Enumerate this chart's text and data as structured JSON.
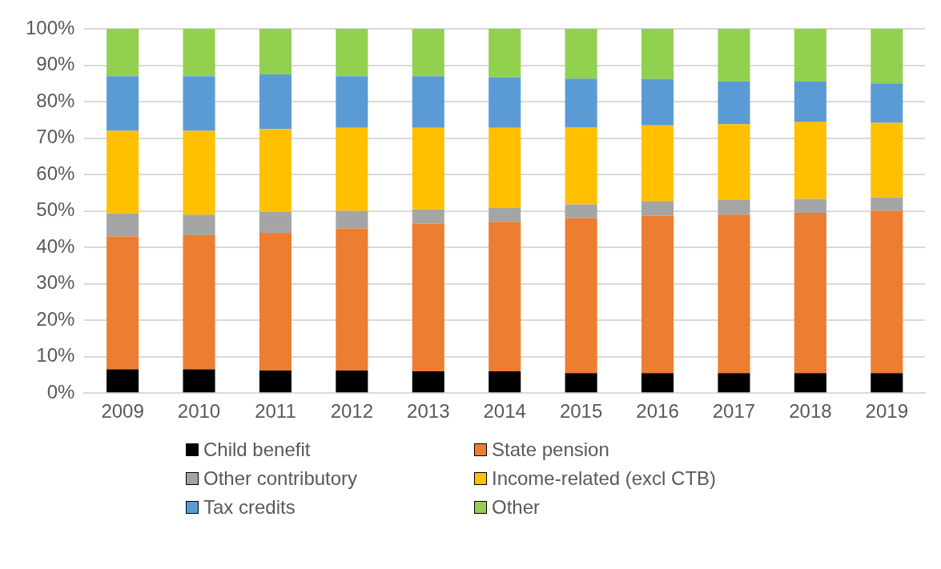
{
  "chart_data": {
    "type": "bar",
    "stacked": true,
    "categories": [
      "2009",
      "2010",
      "2011",
      "2012",
      "2013",
      "2014",
      "2015",
      "2016",
      "2017",
      "2018",
      "2019"
    ],
    "series": [
      {
        "name": "Child benefit",
        "color": "#000000",
        "values": [
          6.5,
          6.5,
          6.2,
          6.2,
          6,
          6,
          5.5,
          5.5,
          5.5,
          5.5,
          5.5
        ]
      },
      {
        "name": "State pension",
        "color": "#ed7d31",
        "values": [
          36.5,
          36.8,
          37.8,
          39,
          40.5,
          41,
          42.5,
          43.2,
          43.5,
          44,
          44.5
        ]
      },
      {
        "name": "Other contributory",
        "color": "#a5a5a5",
        "values": [
          6.3,
          5.7,
          5.7,
          4.8,
          3.9,
          3.8,
          3.8,
          4,
          4,
          3.8,
          3.7
        ]
      },
      {
        "name": "Income-related (excl CTB)",
        "color": "#ffc000",
        "values": [
          22.7,
          23,
          22.8,
          22.8,
          22.4,
          22,
          21.2,
          20.8,
          20.8,
          21.2,
          20.5
        ]
      },
      {
        "name": "Tax credits",
        "color": "#5b9bd5",
        "values": [
          15,
          15,
          15,
          14.2,
          14.2,
          13.9,
          13.3,
          12.7,
          11.7,
          11,
          10.8
        ]
      },
      {
        "name": "Other",
        "color": "#92d050",
        "values": [
          13,
          13,
          12.5,
          13,
          13,
          13.3,
          13.7,
          13.8,
          14.5,
          14.5,
          15
        ]
      }
    ],
    "ylim": [
      0,
      100
    ],
    "yticks": [
      {
        "value": 0,
        "label": "0%"
      },
      {
        "value": 10,
        "label": "10%"
      },
      {
        "value": 20,
        "label": "20%"
      },
      {
        "value": 30,
        "label": "30%"
      },
      {
        "value": 40,
        "label": "40%"
      },
      {
        "value": 50,
        "label": "50%"
      },
      {
        "value": 60,
        "label": "60%"
      },
      {
        "value": 70,
        "label": "70%"
      },
      {
        "value": 80,
        "label": "80%"
      },
      {
        "value": 90,
        "label": "90%"
      },
      {
        "value": 100,
        "label": "100%"
      }
    ],
    "grid": "y",
    "legend": "bottom"
  }
}
